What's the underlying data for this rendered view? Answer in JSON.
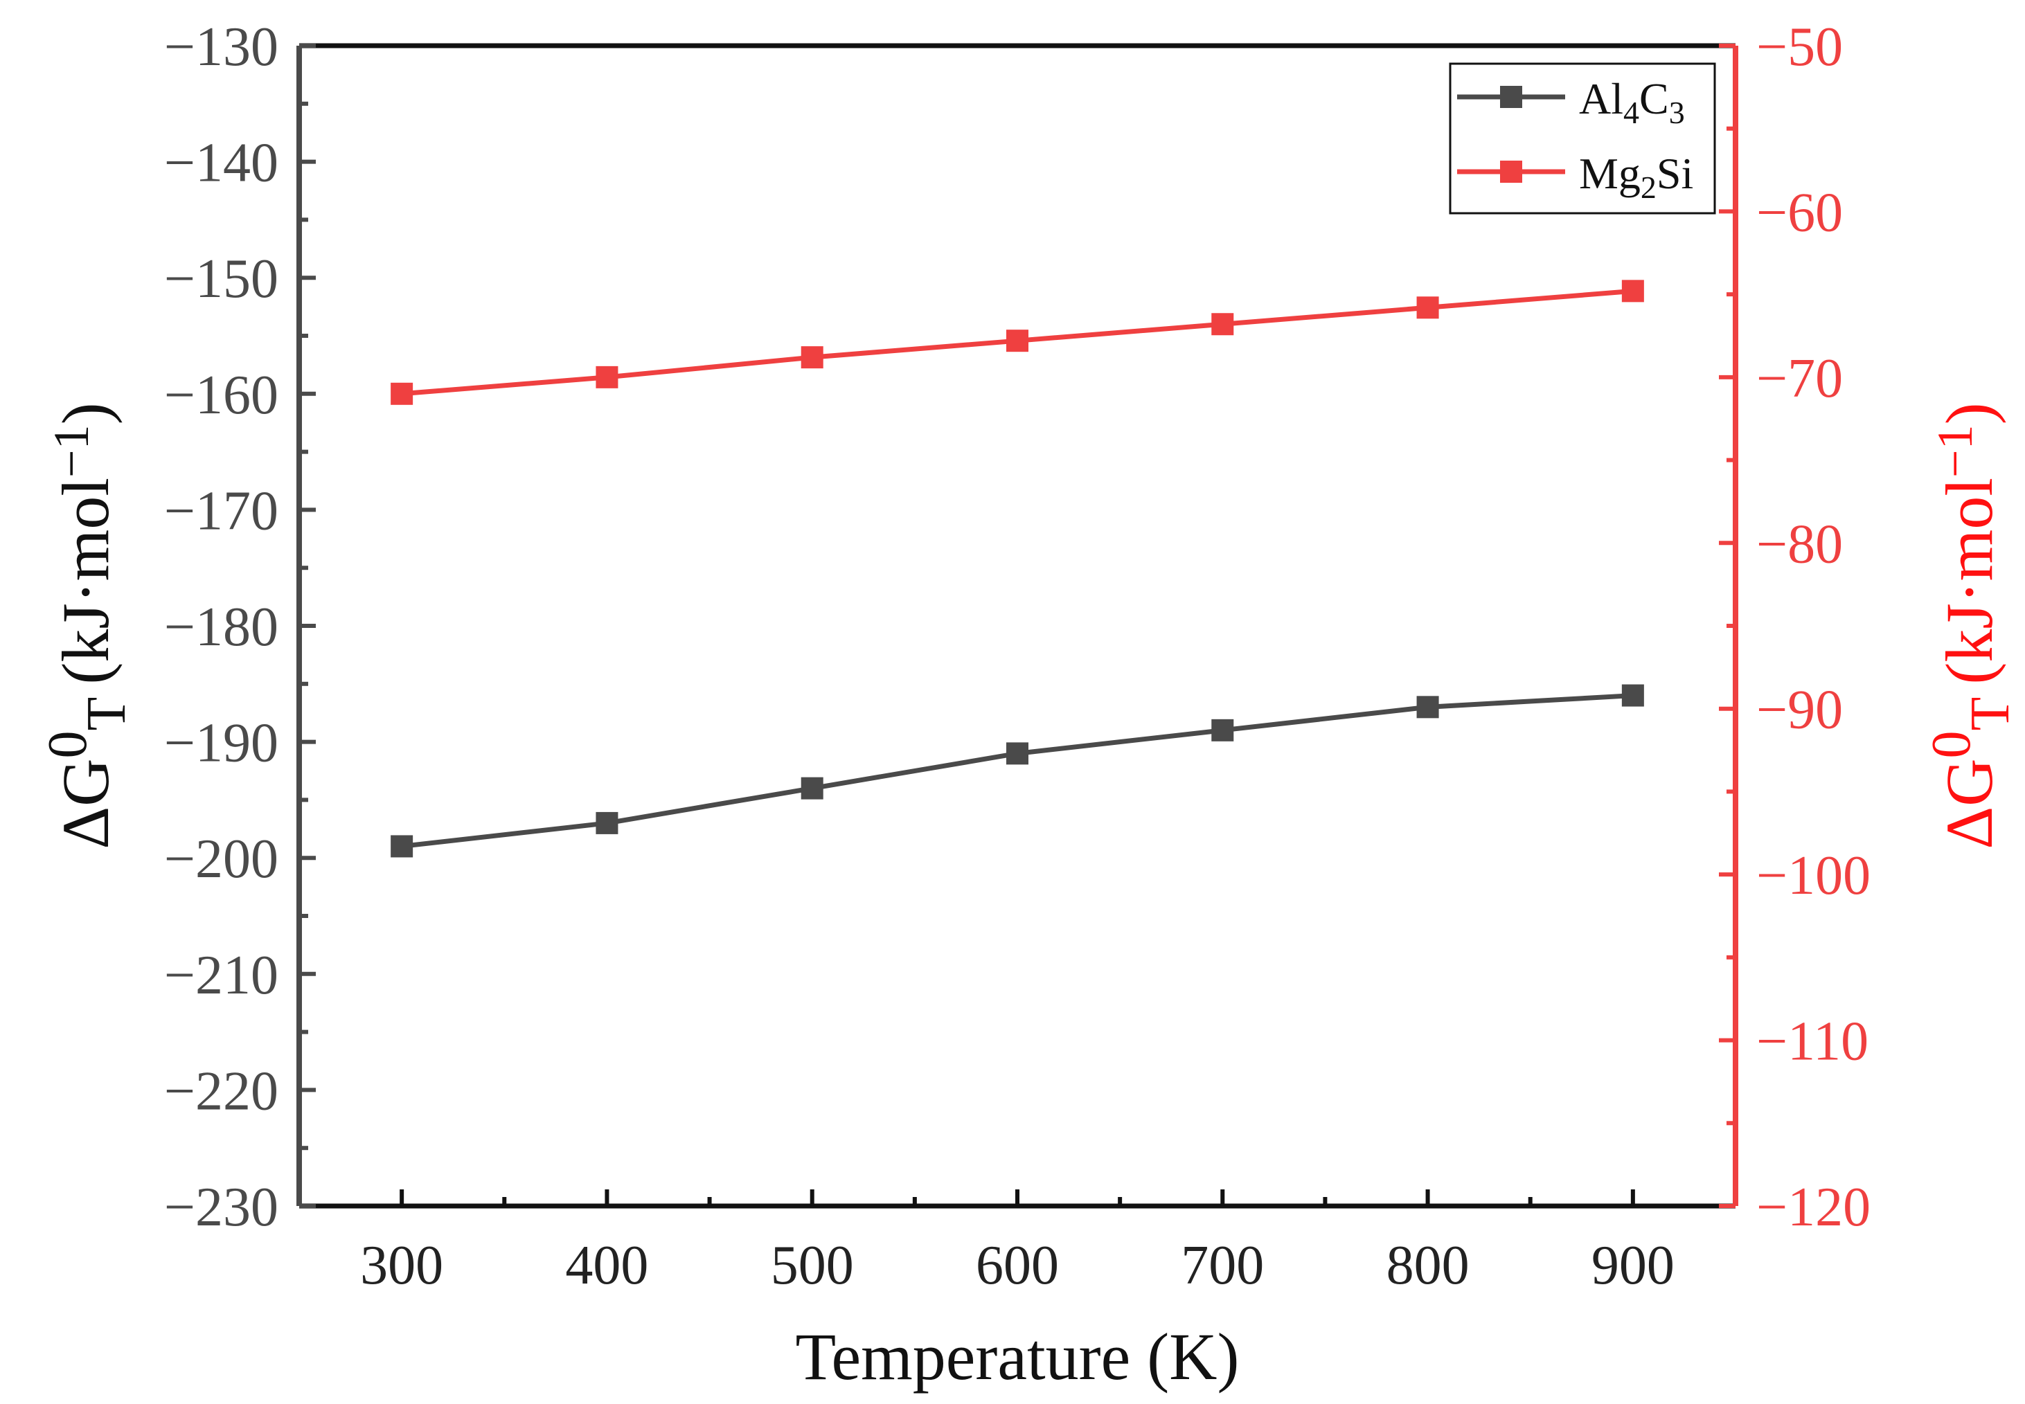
{
  "chart_data": {
    "type": "line",
    "title": "",
    "x": [
      300,
      400,
      500,
      600,
      700,
      800,
      900
    ],
    "xlabel": "Temperature (K)",
    "xlim": [
      250,
      950
    ],
    "xticks": [
      300,
      400,
      500,
      600,
      700,
      800,
      900
    ],
    "ylabel_left": {
      "symbol": "ΔG",
      "superscript": "0",
      "subscript": "T",
      "units_pre": "(kJ·mol",
      "units_sup": "−1",
      "units_post": ")"
    },
    "ylabel_right": {
      "symbol": "ΔG",
      "superscript": "0",
      "subscript": "T",
      "units_pre": "(kJ·mol",
      "units_sup": "−1",
      "units_post": ")"
    },
    "ylim_left": [
      -230,
      -130
    ],
    "ylim_right": [
      -120,
      -50
    ],
    "yticks_left": [
      "−130",
      "−140",
      "−150",
      "−160",
      "−170",
      "−180",
      "−190",
      "−200",
      "−210",
      "−220",
      "−230"
    ],
    "yticks_left_values": [
      -130,
      -140,
      -150,
      -160,
      -170,
      -180,
      -190,
      -200,
      -210,
      -220,
      -230
    ],
    "yticks_right": [
      "−50",
      "−60",
      "−70",
      "−80",
      "−90",
      "−100",
      "−110",
      "−120"
    ],
    "yticks_right_values": [
      -50,
      -60,
      -70,
      -80,
      -90,
      -100,
      -110,
      -120
    ],
    "legend_position": "top-right",
    "grid": false,
    "series": [
      {
        "name": "Al4C3",
        "label_parts": [
          "Al",
          "4",
          "C",
          "3"
        ],
        "axis": "left",
        "color": "#4a4a4a",
        "marker": "square",
        "values": [
          -199,
          -197,
          -194,
          -191,
          -189,
          -187,
          -186
        ]
      },
      {
        "name": "Mg2Si",
        "label_parts": [
          "Mg",
          "2",
          "Si",
          ""
        ],
        "axis": "right",
        "color": "#ef4040",
        "marker": "square",
        "values": [
          -71,
          -70,
          -68.8,
          -67.8,
          -66.8,
          -65.8,
          -64.8
        ]
      }
    ]
  }
}
